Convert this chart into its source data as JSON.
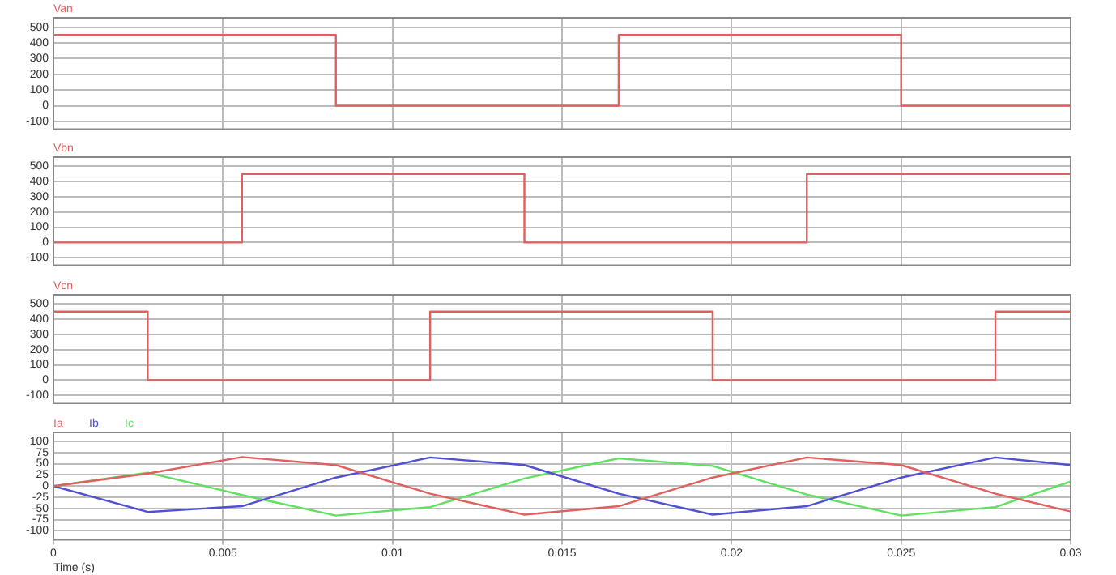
{
  "chart_data": [
    {
      "type": "step",
      "x": [
        0,
        0.00833,
        0.01667,
        0.025,
        0.03
      ],
      "xlim": [
        0,
        0.03
      ],
      "xticks": [
        0,
        0.005,
        0.01,
        0.015,
        0.02,
        0.025,
        0.03
      ],
      "ylim": [
        -150,
        560
      ],
      "yticks": [
        -100,
        0,
        100,
        200,
        300,
        400,
        500
      ],
      "tick_labels": "y",
      "grid": true,
      "legend": "top left",
      "series": [
        {
          "name": "Van",
          "color": "#e06060",
          "values": [
            450,
            0,
            450,
            0,
            0
          ]
        }
      ]
    },
    {
      "type": "step",
      "x": [
        0,
        0.00556,
        0.01389,
        0.02222,
        0.03
      ],
      "xlim": [
        0,
        0.03
      ],
      "xticks": [
        0,
        0.005,
        0.01,
        0.015,
        0.02,
        0.025,
        0.03
      ],
      "ylim": [
        -150,
        560
      ],
      "yticks": [
        -100,
        0,
        100,
        200,
        300,
        400,
        500
      ],
      "tick_labels": "y",
      "grid": true,
      "legend": "top left",
      "series": [
        {
          "name": "Vbn",
          "color": "#e06060",
          "values": [
            0,
            450,
            0,
            450,
            450
          ]
        }
      ]
    },
    {
      "type": "step",
      "x": [
        0,
        0.00278,
        0.01111,
        0.01944,
        0.02778,
        0.03
      ],
      "xlim": [
        0,
        0.03
      ],
      "xticks": [
        0,
        0.005,
        0.01,
        0.015,
        0.02,
        0.025,
        0.03
      ],
      "ylim": [
        -150,
        560
      ],
      "yticks": [
        -100,
        0,
        100,
        200,
        300,
        400,
        500
      ],
      "tick_labels": "y",
      "grid": true,
      "legend": "top left",
      "series": [
        {
          "name": "Vcn",
          "color": "#e06060",
          "values": [
            450,
            0,
            450,
            0,
            450,
            450
          ]
        }
      ]
    },
    {
      "type": "line",
      "x": [
        0,
        0.00278,
        0.00556,
        0.00833,
        0.01111,
        0.01389,
        0.01667,
        0.01944,
        0.02222,
        0.025,
        0.02778,
        0.03
      ],
      "xlim": [
        0,
        0.03
      ],
      "xticks": [
        0,
        0.005,
        0.01,
        0.015,
        0.02,
        0.025,
        0.03
      ],
      "ylim": [
        -120,
        120
      ],
      "yticks": [
        -100,
        -75,
        -50,
        -25,
        0,
        25,
        50,
        75,
        100
      ],
      "xlabel": "Time (s)",
      "grid": true,
      "legend": "top left",
      "series": [
        {
          "name": "Ia",
          "color": "#e06060",
          "values": [
            0,
            28,
            65,
            47,
            -17,
            -64,
            -45,
            19,
            64,
            47,
            -17,
            -57
          ]
        },
        {
          "name": "Ib",
          "color": "#5050d0",
          "values": [
            0,
            -58,
            -45,
            19,
            64,
            47,
            -17,
            -64,
            -45,
            19,
            64,
            47
          ]
        },
        {
          "name": "Ic",
          "color": "#60e060",
          "values": [
            0,
            30,
            -20,
            -66,
            -47,
            17,
            62,
            45,
            -19,
            -66,
            -47,
            10
          ]
        }
      ]
    }
  ]
}
